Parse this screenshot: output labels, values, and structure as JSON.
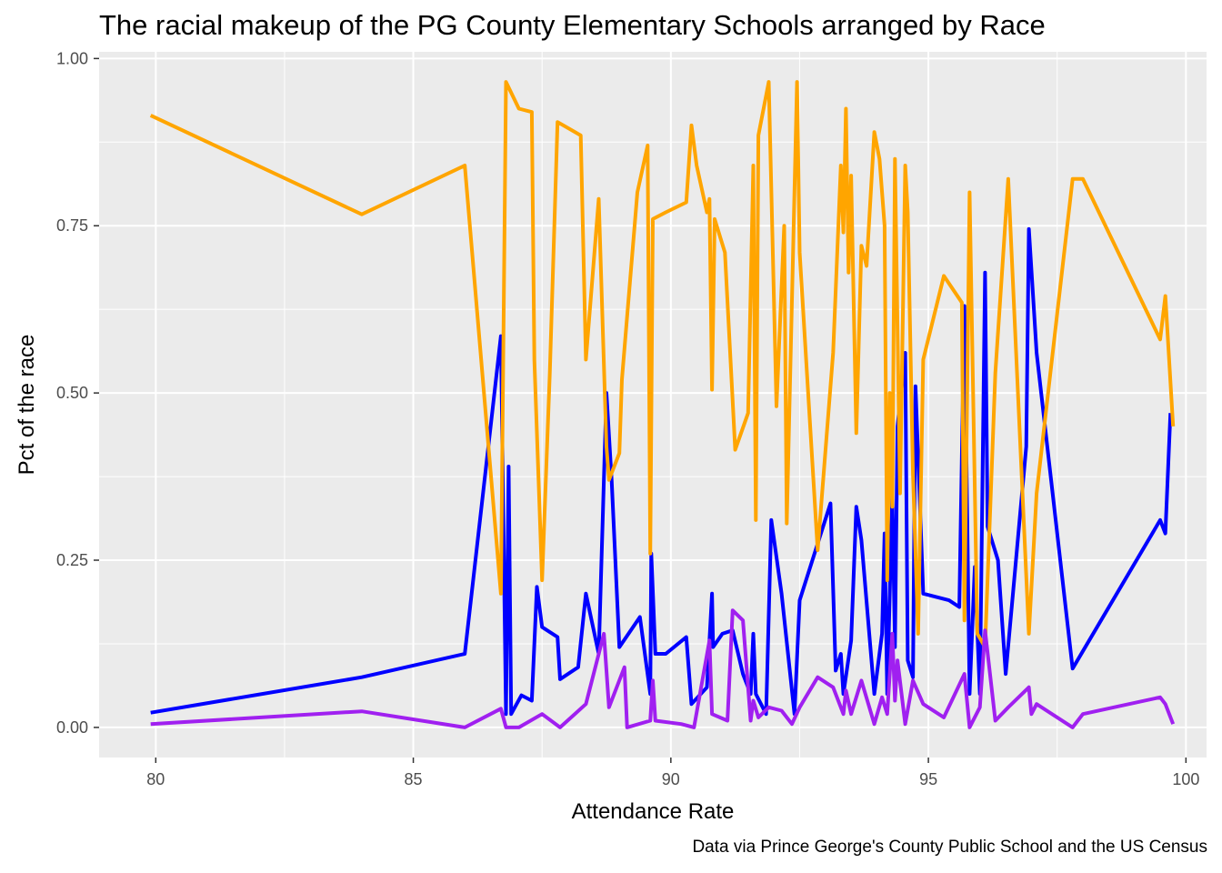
{
  "chart_data": {
    "type": "line",
    "title": "The racial makeup of the PG County Elementary Schools arranged by Race",
    "caption": "Data via Prince George's County Public School and the US Census",
    "xlabel": "Attendance Rate",
    "ylabel": "Pct of the race",
    "xlim": [
      78.9,
      100.4
    ],
    "ylim": [
      -0.045,
      1.01
    ],
    "x_ticks": [
      80,
      85,
      90,
      95,
      100
    ],
    "x_tick_labels": [
      "80",
      "85",
      "90",
      "95",
      "100"
    ],
    "y_ticks": [
      0,
      0.25,
      0.5,
      0.75,
      1.0
    ],
    "y_tick_labels": [
      "0.00",
      "0.25",
      "0.50",
      "0.75",
      "1.00"
    ],
    "grid": true,
    "legend": "none",
    "panel_background": "#ebebeb",
    "series": [
      {
        "color": "#0000ff",
        "points": [
          [
            79.9,
            0.022
          ],
          [
            84.0,
            0.075
          ],
          [
            86.0,
            0.11
          ],
          [
            86.7,
            0.585
          ],
          [
            86.8,
            0.02
          ],
          [
            86.85,
            0.39
          ],
          [
            86.9,
            0.02
          ],
          [
            87.1,
            0.048
          ],
          [
            87.3,
            0.04
          ],
          [
            87.4,
            0.21
          ],
          [
            87.5,
            0.15
          ],
          [
            87.8,
            0.135
          ],
          [
            87.85,
            0.072
          ],
          [
            88.2,
            0.09
          ],
          [
            88.35,
            0.2
          ],
          [
            88.6,
            0.11
          ],
          [
            88.75,
            0.5
          ],
          [
            88.85,
            0.37
          ],
          [
            89.0,
            0.12
          ],
          [
            89.4,
            0.165
          ],
          [
            89.6,
            0.05
          ],
          [
            89.62,
            0.26
          ],
          [
            89.7,
            0.11
          ],
          [
            89.9,
            0.11
          ],
          [
            90.3,
            0.135
          ],
          [
            90.4,
            0.035
          ],
          [
            90.7,
            0.06
          ],
          [
            90.8,
            0.2
          ],
          [
            90.82,
            0.12
          ],
          [
            91.0,
            0.14
          ],
          [
            91.2,
            0.145
          ],
          [
            91.4,
            0.08
          ],
          [
            91.55,
            0.05
          ],
          [
            91.6,
            0.14
          ],
          [
            91.65,
            0.05
          ],
          [
            91.85,
            0.02
          ],
          [
            91.95,
            0.31
          ],
          [
            92.15,
            0.2
          ],
          [
            92.4,
            0.02
          ],
          [
            92.5,
            0.19
          ],
          [
            93.1,
            0.335
          ],
          [
            93.2,
            0.085
          ],
          [
            93.3,
            0.11
          ],
          [
            93.35,
            0.05
          ],
          [
            93.5,
            0.13
          ],
          [
            93.6,
            0.33
          ],
          [
            93.7,
            0.28
          ],
          [
            93.95,
            0.05
          ],
          [
            94.1,
            0.14
          ],
          [
            94.15,
            0.29
          ],
          [
            94.2,
            0.05
          ],
          [
            94.3,
            0.35
          ],
          [
            94.35,
            0.12
          ],
          [
            94.4,
            0.45
          ],
          [
            94.55,
            0.56
          ],
          [
            94.6,
            0.1
          ],
          [
            94.7,
            0.075
          ],
          [
            94.75,
            0.51
          ],
          [
            94.9,
            0.2
          ],
          [
            95.4,
            0.19
          ],
          [
            95.6,
            0.18
          ],
          [
            95.7,
            0.63
          ],
          [
            95.8,
            0.05
          ],
          [
            95.9,
            0.24
          ],
          [
            96.0,
            0.05
          ],
          [
            96.1,
            0.68
          ],
          [
            96.15,
            0.3
          ],
          [
            96.35,
            0.25
          ],
          [
            96.5,
            0.08
          ],
          [
            96.9,
            0.42
          ],
          [
            96.95,
            0.745
          ],
          [
            97.1,
            0.56
          ],
          [
            97.8,
            0.088
          ],
          [
            99.5,
            0.31
          ],
          [
            99.6,
            0.29
          ],
          [
            99.7,
            0.47
          ]
        ]
      },
      {
        "color": "#ffa500",
        "points": [
          [
            79.9,
            0.915
          ],
          [
            84.0,
            0.767
          ],
          [
            86.0,
            0.84
          ],
          [
            86.7,
            0.2
          ],
          [
            86.8,
            0.965
          ],
          [
            87.05,
            0.925
          ],
          [
            87.3,
            0.92
          ],
          [
            87.35,
            0.55
          ],
          [
            87.5,
            0.22
          ],
          [
            87.65,
            0.53
          ],
          [
            87.8,
            0.905
          ],
          [
            88.25,
            0.885
          ],
          [
            88.35,
            0.55
          ],
          [
            88.6,
            0.79
          ],
          [
            88.75,
            0.42
          ],
          [
            88.8,
            0.37
          ],
          [
            89.0,
            0.41
          ],
          [
            89.05,
            0.52
          ],
          [
            89.35,
            0.8
          ],
          [
            89.55,
            0.87
          ],
          [
            89.6,
            0.26
          ],
          [
            89.65,
            0.76
          ],
          [
            89.9,
            0.77
          ],
          [
            90.3,
            0.785
          ],
          [
            90.4,
            0.9
          ],
          [
            90.5,
            0.84
          ],
          [
            90.7,
            0.77
          ],
          [
            90.75,
            0.79
          ],
          [
            90.8,
            0.505
          ],
          [
            90.85,
            0.76
          ],
          [
            91.05,
            0.71
          ],
          [
            91.25,
            0.415
          ],
          [
            91.5,
            0.47
          ],
          [
            91.6,
            0.84
          ],
          [
            91.65,
            0.31
          ],
          [
            91.7,
            0.885
          ],
          [
            91.9,
            0.965
          ],
          [
            92.05,
            0.48
          ],
          [
            92.2,
            0.75
          ],
          [
            92.25,
            0.305
          ],
          [
            92.45,
            0.965
          ],
          [
            92.5,
            0.71
          ],
          [
            92.85,
            0.265
          ],
          [
            93.15,
            0.56
          ],
          [
            93.3,
            0.84
          ],
          [
            93.35,
            0.74
          ],
          [
            93.4,
            0.925
          ],
          [
            93.45,
            0.68
          ],
          [
            93.5,
            0.825
          ],
          [
            93.6,
            0.44
          ],
          [
            93.7,
            0.72
          ],
          [
            93.8,
            0.69
          ],
          [
            93.95,
            0.89
          ],
          [
            94.05,
            0.85
          ],
          [
            94.15,
            0.75
          ],
          [
            94.2,
            0.22
          ],
          [
            94.25,
            0.5
          ],
          [
            94.3,
            0.33
          ],
          [
            94.35,
            0.85
          ],
          [
            94.45,
            0.35
          ],
          [
            94.55,
            0.84
          ],
          [
            94.6,
            0.77
          ],
          [
            94.7,
            0.38
          ],
          [
            94.8,
            0.14
          ],
          [
            94.9,
            0.55
          ],
          [
            95.3,
            0.675
          ],
          [
            95.65,
            0.635
          ],
          [
            95.7,
            0.16
          ],
          [
            95.8,
            0.8
          ],
          [
            95.95,
            0.14
          ],
          [
            96.1,
            0.12
          ],
          [
            96.3,
            0.53
          ],
          [
            96.55,
            0.82
          ],
          [
            96.95,
            0.14
          ],
          [
            97.1,
            0.35
          ],
          [
            97.8,
            0.82
          ],
          [
            98.0,
            0.82
          ],
          [
            99.5,
            0.58
          ],
          [
            99.6,
            0.645
          ],
          [
            99.75,
            0.45
          ]
        ]
      },
      {
        "color": "#a020f0",
        "points": [
          [
            79.9,
            0.005
          ],
          [
            84.0,
            0.024
          ],
          [
            86.0,
            0.0
          ],
          [
            86.7,
            0.028
          ],
          [
            86.8,
            0.0
          ],
          [
            87.05,
            0.0
          ],
          [
            87.5,
            0.02
          ],
          [
            87.85,
            0.0
          ],
          [
            88.35,
            0.035
          ],
          [
            88.7,
            0.14
          ],
          [
            88.8,
            0.03
          ],
          [
            89.1,
            0.09
          ],
          [
            89.15,
            0.0
          ],
          [
            89.6,
            0.01
          ],
          [
            89.65,
            0.07
          ],
          [
            89.7,
            0.01
          ],
          [
            90.2,
            0.005
          ],
          [
            90.45,
            0.0
          ],
          [
            90.75,
            0.13
          ],
          [
            90.8,
            0.02
          ],
          [
            91.1,
            0.01
          ],
          [
            91.2,
            0.175
          ],
          [
            91.4,
            0.16
          ],
          [
            91.55,
            0.01
          ],
          [
            91.6,
            0.04
          ],
          [
            91.7,
            0.015
          ],
          [
            91.9,
            0.03
          ],
          [
            92.15,
            0.025
          ],
          [
            92.35,
            0.005
          ],
          [
            92.5,
            0.03
          ],
          [
            92.85,
            0.075
          ],
          [
            93.15,
            0.06
          ],
          [
            93.35,
            0.02
          ],
          [
            93.4,
            0.055
          ],
          [
            93.5,
            0.02
          ],
          [
            93.7,
            0.07
          ],
          [
            93.95,
            0.005
          ],
          [
            94.1,
            0.045
          ],
          [
            94.2,
            0.02
          ],
          [
            94.3,
            0.14
          ],
          [
            94.35,
            0.04
          ],
          [
            94.4,
            0.1
          ],
          [
            94.55,
            0.005
          ],
          [
            94.7,
            0.07
          ],
          [
            94.9,
            0.035
          ],
          [
            95.3,
            0.015
          ],
          [
            95.7,
            0.08
          ],
          [
            95.8,
            0.0
          ],
          [
            96.0,
            0.03
          ],
          [
            96.1,
            0.145
          ],
          [
            96.3,
            0.01
          ],
          [
            96.55,
            0.03
          ],
          [
            96.95,
            0.06
          ],
          [
            97.0,
            0.02
          ],
          [
            97.1,
            0.035
          ],
          [
            97.8,
            0.0
          ],
          [
            98.0,
            0.02
          ],
          [
            99.5,
            0.045
          ],
          [
            99.6,
            0.035
          ],
          [
            99.75,
            0.005
          ]
        ]
      }
    ]
  }
}
